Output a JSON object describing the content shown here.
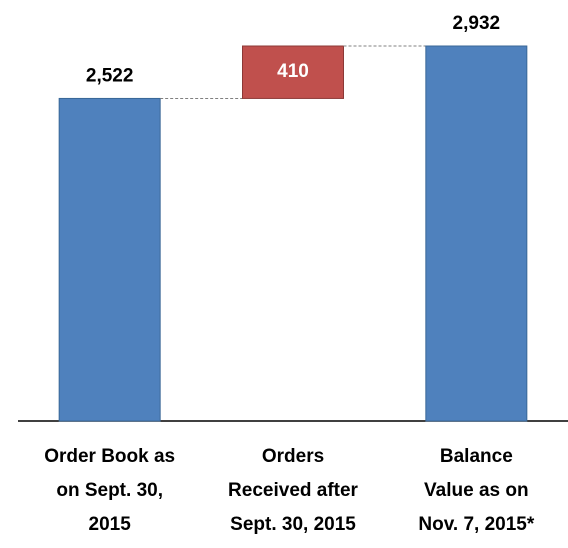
{
  "chart_data": {
    "type": "waterfall",
    "categories": [
      "Order Book as\non Sept. 30,\n2015",
      "Orders\nReceived after\nSept. 30, 2015",
      "Balance\nValue as on\nNov. 7, 2015*"
    ],
    "values": [
      2522,
      410,
      2932
    ],
    "value_labels": [
      "2,522",
      "410",
      "2,932"
    ],
    "is_total": [
      true,
      false,
      true
    ],
    "colors": [
      "#4f81bd",
      "#c0504d",
      "#4f81bd"
    ]
  }
}
